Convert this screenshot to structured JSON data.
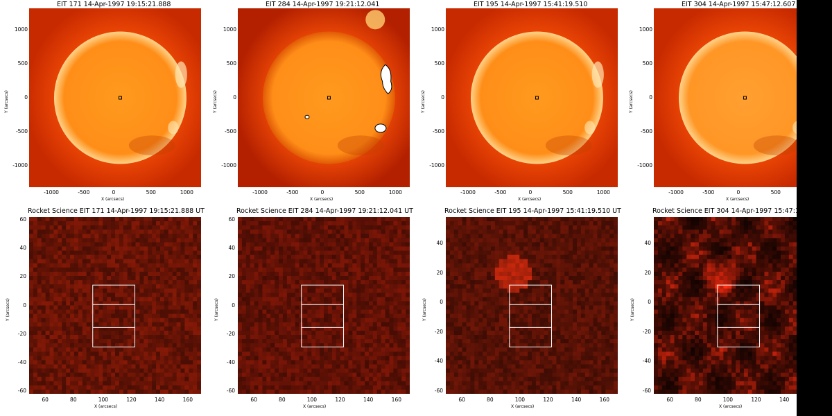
{
  "top_panels": [
    {
      "title": "EIT 171 14-Apr-1997 19:15:21.888",
      "xlabel": "X (arcsecs)",
      "ylabel": "Y (arcsecs)",
      "xticks": [
        "-1000",
        "-500",
        "0",
        "500",
        "1000"
      ],
      "yticks": [
        "1000",
        "500",
        "0",
        "-500",
        "-1000"
      ]
    },
    {
      "title": "EIT 284 14-Apr-1997 19:21:12.041",
      "xlabel": "X (arcsecs)",
      "ylabel": "Y (arcsecs)",
      "xticks": [
        "-1000",
        "-500",
        "0",
        "500",
        "1000"
      ],
      "yticks": [
        "1000",
        "500",
        "0",
        "-500",
        "-1000"
      ]
    },
    {
      "title": "EIT 195 14-Apr-1997 15:41:19.510",
      "xlabel": "X (arcsecs)",
      "ylabel": "Y (arcsecs)",
      "xticks": [
        "-1000",
        "-500",
        "0",
        "500",
        "1000"
      ],
      "yticks": [
        "1000",
        "500",
        "0",
        "-500",
        "-1000"
      ]
    },
    {
      "title": "EIT 304 14-Apr-1997 15:47:12.607",
      "xlabel": "X (arcsecs)",
      "ylabel": "Y (arcsecs)",
      "xticks": [
        "-1000",
        "-500",
        "0",
        "500"
      ],
      "yticks": [
        "1000",
        "500",
        "0",
        "-500",
        "-1000"
      ]
    }
  ],
  "bottom_panels": [
    {
      "title": "Rocket Science EIT 171 14-Apr-1997 19:15:21.888 UT",
      "xlabel": "X (arcsecs)",
      "ylabel": "Y (arcsecs)",
      "xticks": [
        "60",
        "80",
        "100",
        "120",
        "140",
        "160"
      ],
      "yticks": [
        "60",
        "40",
        "20",
        "0",
        "-20",
        "-40",
        "-60"
      ]
    },
    {
      "title": "Rocket Science EIT 284 14-Apr-1997 19:21:12.041 UT",
      "xlabel": "X (arcsecs)",
      "ylabel": "Y (arcsecs)",
      "xticks": [
        "60",
        "80",
        "100",
        "120",
        "140",
        "160"
      ],
      "yticks": [
        "60",
        "40",
        "20",
        "0",
        "-20",
        "-40",
        "-60"
      ]
    },
    {
      "title": "Rocket Science EIT 195 14-Apr-1997 15:41:19.510 UT",
      "xlabel": "X (arcsecs)",
      "ylabel": "Y (arcsecs)",
      "xticks": [
        "60",
        "80",
        "100",
        "120",
        "140",
        "160"
      ],
      "yticks": [
        "40",
        "20",
        "0",
        "-20",
        "-40",
        "-60"
      ]
    },
    {
      "title": "Rocket Science EIT 304 14-Apr-1997 15:47:1",
      "xlabel": "X (arcsecs)",
      "ylabel": "Y (arcsecs)",
      "xticks": [
        "60",
        "80",
        "100",
        "120",
        "140"
      ],
      "yticks": [
        "40",
        "20",
        "0",
        "-20",
        "-40",
        "-60"
      ]
    }
  ],
  "colors": {
    "background_red": "#c82a00",
    "disk_orange": "#ff9a1e",
    "disk_304": "#ffa030",
    "zoom_dark": "#3a0600",
    "zoom_mid": "#7a1a06",
    "box_stroke": "#ffffff"
  }
}
